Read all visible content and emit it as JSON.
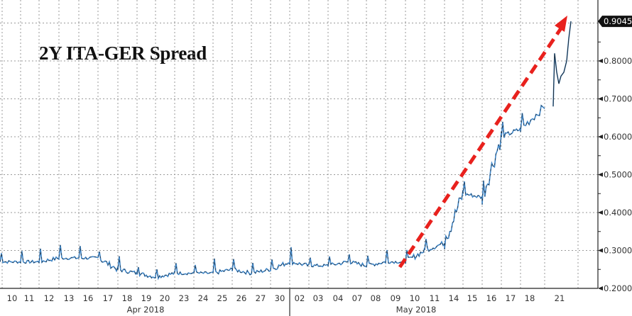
{
  "chart_data": {
    "type": "line",
    "title": "2Y ITA-GER Spread",
    "xlabel": "",
    "ylabel": "",
    "ylim": [
      0.2,
      0.92
    ],
    "grid": true,
    "legend": null,
    "y_ticks": [
      "0.2000",
      "0.3000",
      "0.4000",
      "0.5000",
      "0.6000",
      "0.7000",
      "0.8000"
    ],
    "last_value_label": "0.9045",
    "x_tick_labels": [
      "10",
      "11",
      "12",
      "13",
      "16",
      "17",
      "18",
      "19",
      "20",
      "23",
      "24",
      "25",
      "26",
      "27",
      "30",
      "02",
      "03",
      "04",
      "07",
      "08",
      "09",
      "10",
      "11",
      "14",
      "15",
      "16",
      "17",
      "18",
      "21"
    ],
    "x_month_labels": [
      "Apr 2018",
      "May 2018"
    ],
    "categories": [
      "Apr 10",
      "Apr 11",
      "Apr 12",
      "Apr 13",
      "Apr 16",
      "Apr 17",
      "Apr 18",
      "Apr 19",
      "Apr 20",
      "Apr 23",
      "Apr 24",
      "Apr 25",
      "Apr 26",
      "Apr 27",
      "Apr 30",
      "May 02",
      "May 03",
      "May 04",
      "May 07",
      "May 08",
      "May 09",
      "May 10",
      "May 11",
      "May 14",
      "May 15",
      "May 16",
      "May 17",
      "May 18",
      "May 21"
    ],
    "series": [
      {
        "name": "2Y ITA-GER Spread",
        "values": [
          0.27,
          0.27,
          0.28,
          0.28,
          0.28,
          0.25,
          0.24,
          0.23,
          0.24,
          0.24,
          0.24,
          0.25,
          0.24,
          0.25,
          0.27,
          0.26,
          0.26,
          0.27,
          0.26,
          0.27,
          0.27,
          0.3,
          0.32,
          0.45,
          0.44,
          0.6,
          0.62,
          0.68,
          0.9045
        ]
      }
    ],
    "annotations": [
      {
        "type": "arrow",
        "color": "#e8211d",
        "style": "dashed",
        "from": "May 09 ~0.26",
        "to": "May 21 ~0.92",
        "description": "red dashed upward trend arrow"
      }
    ]
  },
  "colors": {
    "line_blue": "#3f86c8",
    "line_dark": "#1a1a1a",
    "arrow_red": "#e8211d",
    "grid": "#9a9a9a",
    "last_label_bg": "#111111"
  }
}
